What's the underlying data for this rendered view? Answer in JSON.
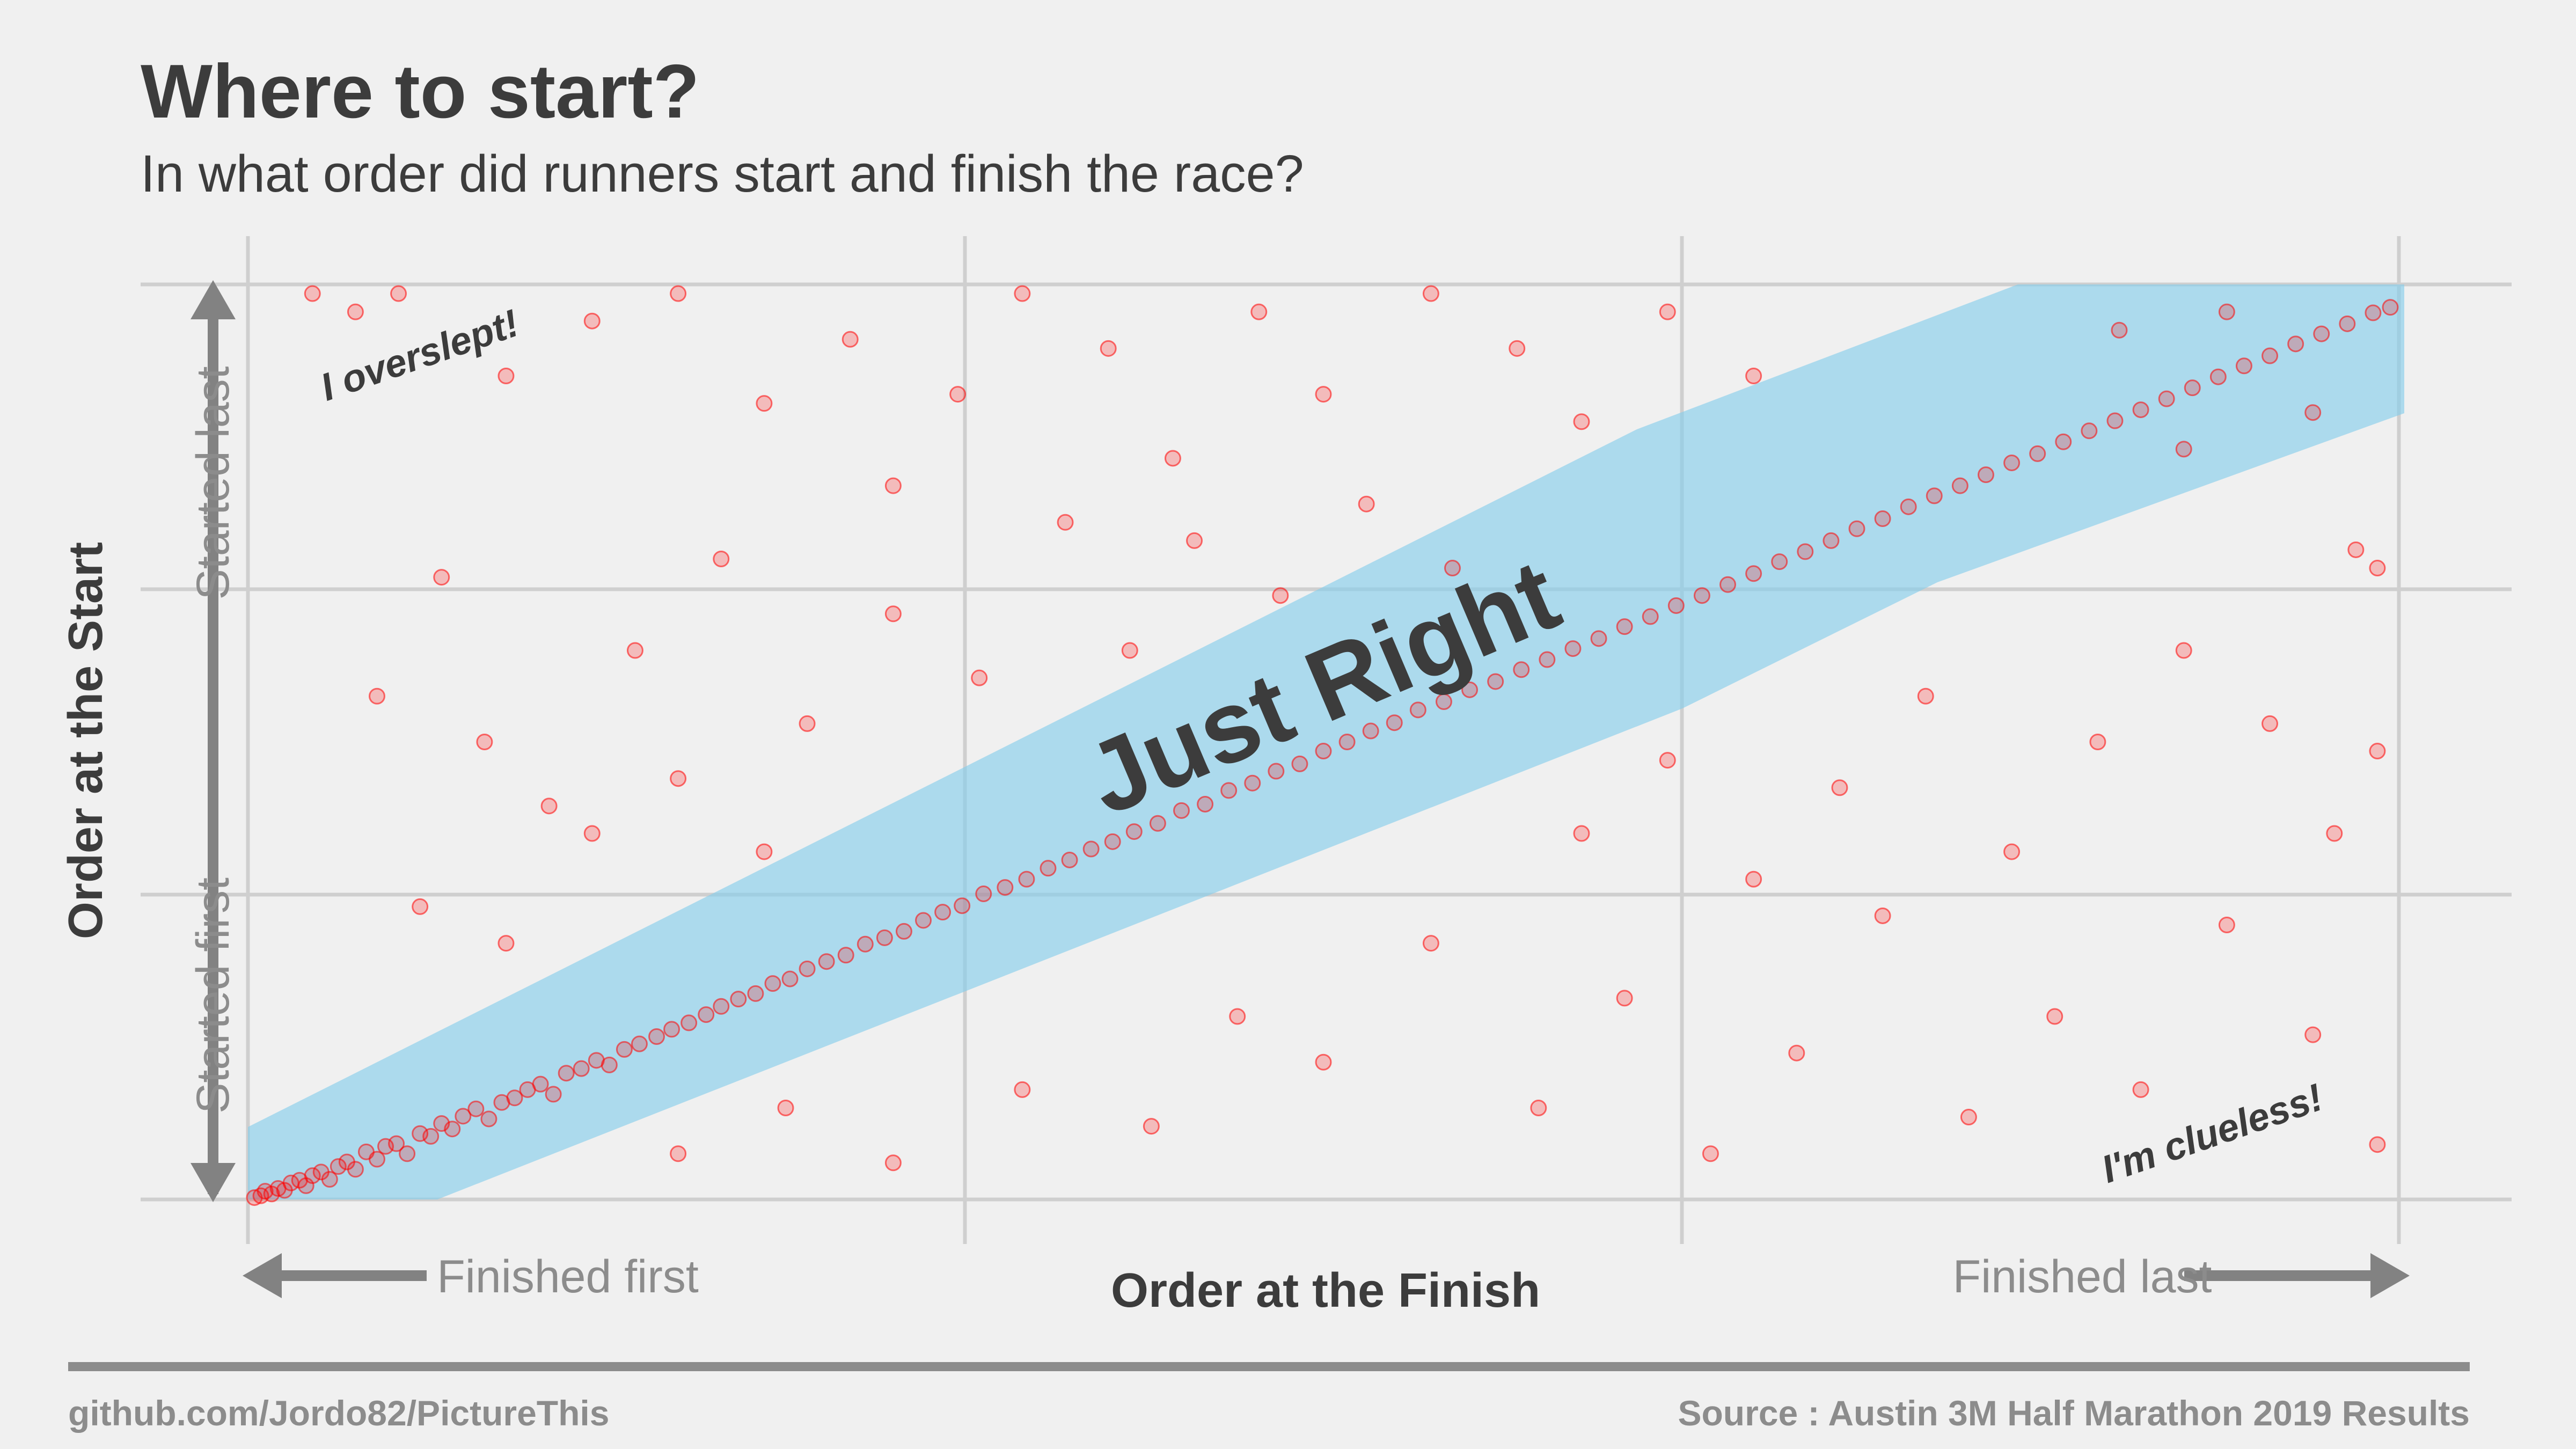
{
  "title": "Where to start?",
  "subtitle": "In what order did runners start and finish the race?",
  "footer": {
    "left": "github.com/Jordo82/PictureThis",
    "right": "Source : Austin 3M Half Marathon 2019 Results"
  },
  "chart_data": {
    "type": "scatter",
    "xlabel": "Order at the Finish",
    "ylabel": "Order at the Start",
    "x_ticks": [
      "Finished first",
      "Finished last"
    ],
    "y_ticks": [
      "Started first",
      "Started last"
    ],
    "xlim": [
      0,
      1
    ],
    "ylim": [
      0,
      1
    ],
    "grid": true,
    "point_color": "#ff0000",
    "band_color": "#87ceeb",
    "annotations": {
      "band": "Just Right",
      "top_left": "I overslept!",
      "bottom_right": "I'm clueless!"
    },
    "series": [
      {
        "values": [
          [
            0.003,
            0.002
          ],
          [
            0.006,
            0.004
          ],
          [
            0.008,
            0.009
          ],
          [
            0.011,
            0.006
          ],
          [
            0.014,
            0.012
          ],
          [
            0.017,
            0.01
          ],
          [
            0.02,
            0.018
          ],
          [
            0.024,
            0.021
          ],
          [
            0.027,
            0.015
          ],
          [
            0.03,
            0.026
          ],
          [
            0.034,
            0.03
          ],
          [
            0.038,
            0.022
          ],
          [
            0.042,
            0.036
          ],
          [
            0.046,
            0.041
          ],
          [
            0.05,
            0.033
          ],
          [
            0.055,
            0.052
          ],
          [
            0.06,
            0.044
          ],
          [
            0.064,
            0.058
          ],
          [
            0.069,
            0.061
          ],
          [
            0.074,
            0.05
          ],
          [
            0.08,
            0.072
          ],
          [
            0.085,
            0.069
          ],
          [
            0.09,
            0.083
          ],
          [
            0.095,
            0.077
          ],
          [
            0.1,
            0.091
          ],
          [
            0.106,
            0.099
          ],
          [
            0.112,
            0.088
          ],
          [
            0.118,
            0.106
          ],
          [
            0.124,
            0.111
          ],
          [
            0.13,
            0.12
          ],
          [
            0.136,
            0.126
          ],
          [
            0.142,
            0.115
          ],
          [
            0.148,
            0.138
          ],
          [
            0.155,
            0.143
          ],
          [
            0.162,
            0.152
          ],
          [
            0.168,
            0.147
          ],
          [
            0.175,
            0.164
          ],
          [
            0.182,
            0.17
          ],
          [
            0.19,
            0.178
          ],
          [
            0.197,
            0.186
          ],
          [
            0.205,
            0.193
          ],
          [
            0.213,
            0.202
          ],
          [
            0.22,
            0.211
          ],
          [
            0.228,
            0.219
          ],
          [
            0.236,
            0.225
          ],
          [
            0.244,
            0.236
          ],
          [
            0.252,
            0.241
          ],
          [
            0.26,
            0.252
          ],
          [
            0.269,
            0.26
          ],
          [
            0.278,
            0.267
          ],
          [
            0.287,
            0.279
          ],
          [
            0.296,
            0.286
          ],
          [
            0.305,
            0.293
          ],
          [
            0.314,
            0.305
          ],
          [
            0.323,
            0.314
          ],
          [
            0.332,
            0.321
          ],
          [
            0.342,
            0.334
          ],
          [
            0.352,
            0.341
          ],
          [
            0.362,
            0.35
          ],
          [
            0.372,
            0.362
          ],
          [
            0.382,
            0.371
          ],
          [
            0.392,
            0.383
          ],
          [
            0.402,
            0.391
          ],
          [
            0.412,
            0.402
          ],
          [
            0.423,
            0.411
          ],
          [
            0.434,
            0.425
          ],
          [
            0.445,
            0.432
          ],
          [
            0.456,
            0.447
          ],
          [
            0.467,
            0.455
          ],
          [
            0.478,
            0.468
          ],
          [
            0.489,
            0.476
          ],
          [
            0.5,
            0.49
          ],
          [
            0.511,
            0.5
          ],
          [
            0.522,
            0.512
          ],
          [
            0.533,
            0.521
          ],
          [
            0.544,
            0.535
          ],
          [
            0.556,
            0.544
          ],
          [
            0.568,
            0.557
          ],
          [
            0.58,
            0.566
          ],
          [
            0.592,
            0.579
          ],
          [
            0.604,
            0.59
          ],
          [
            0.616,
            0.602
          ],
          [
            0.628,
            0.613
          ],
          [
            0.64,
            0.626
          ],
          [
            0.652,
            0.637
          ],
          [
            0.664,
            0.649
          ],
          [
            0.676,
            0.66
          ],
          [
            0.688,
            0.672
          ],
          [
            0.7,
            0.684
          ],
          [
            0.712,
            0.697
          ],
          [
            0.724,
            0.708
          ],
          [
            0.736,
            0.72
          ],
          [
            0.748,
            0.733
          ],
          [
            0.76,
            0.744
          ],
          [
            0.772,
            0.757
          ],
          [
            0.784,
            0.769
          ],
          [
            0.796,
            0.78
          ],
          [
            0.808,
            0.792
          ],
          [
            0.82,
            0.805
          ],
          [
            0.832,
            0.815
          ],
          [
            0.844,
            0.828
          ],
          [
            0.856,
            0.84
          ],
          [
            0.868,
            0.851
          ],
          [
            0.88,
            0.863
          ],
          [
            0.892,
            0.875
          ],
          [
            0.904,
            0.887
          ],
          [
            0.916,
            0.899
          ],
          [
            0.928,
            0.911
          ],
          [
            0.94,
            0.922
          ],
          [
            0.952,
            0.935
          ],
          [
            0.964,
            0.946
          ],
          [
            0.976,
            0.957
          ],
          [
            0.988,
            0.969
          ],
          [
            0.996,
            0.975
          ],
          [
            0.92,
            0.97
          ],
          [
            0.87,
            0.95
          ],
          [
            0.9,
            0.82
          ],
          [
            0.96,
            0.86
          ],
          [
            0.99,
            0.69
          ],
          [
            0.98,
            0.71
          ],
          [
            0.03,
            0.99
          ],
          [
            0.05,
            0.97
          ],
          [
            0.07,
            0.99
          ],
          [
            0.12,
            0.9
          ],
          [
            0.16,
            0.96
          ],
          [
            0.2,
            0.99
          ],
          [
            0.24,
            0.87
          ],
          [
            0.28,
            0.94
          ],
          [
            0.3,
            0.78
          ],
          [
            0.33,
            0.88
          ],
          [
            0.36,
            0.99
          ],
          [
            0.4,
            0.93
          ],
          [
            0.43,
            0.81
          ],
          [
            0.47,
            0.97
          ],
          [
            0.5,
            0.88
          ],
          [
            0.55,
            0.99
          ],
          [
            0.59,
            0.93
          ],
          [
            0.62,
            0.85
          ],
          [
            0.66,
            0.97
          ],
          [
            0.7,
            0.9
          ],
          [
            0.06,
            0.55
          ],
          [
            0.09,
            0.68
          ],
          [
            0.11,
            0.5
          ],
          [
            0.14,
            0.43
          ],
          [
            0.18,
            0.6
          ],
          [
            0.22,
            0.7
          ],
          [
            0.26,
            0.52
          ],
          [
            0.3,
            0.64
          ],
          [
            0.34,
            0.57
          ],
          [
            0.38,
            0.74
          ],
          [
            0.08,
            0.32
          ],
          [
            0.12,
            0.28
          ],
          [
            0.16,
            0.4
          ],
          [
            0.2,
            0.46
          ],
          [
            0.24,
            0.38
          ],
          [
            0.41,
            0.6
          ],
          [
            0.44,
            0.72
          ],
          [
            0.48,
            0.66
          ],
          [
            0.52,
            0.76
          ],
          [
            0.56,
            0.69
          ],
          [
            0.2,
            0.05
          ],
          [
            0.25,
            0.1
          ],
          [
            0.3,
            0.04
          ],
          [
            0.36,
            0.12
          ],
          [
            0.42,
            0.08
          ],
          [
            0.46,
            0.2
          ],
          [
            0.5,
            0.15
          ],
          [
            0.55,
            0.28
          ],
          [
            0.6,
            0.1
          ],
          [
            0.64,
            0.22
          ],
          [
            0.68,
            0.05
          ],
          [
            0.72,
            0.16
          ],
          [
            0.76,
            0.31
          ],
          [
            0.8,
            0.09
          ],
          [
            0.84,
            0.2
          ],
          [
            0.88,
            0.12
          ],
          [
            0.92,
            0.3
          ],
          [
            0.96,
            0.18
          ],
          [
            0.99,
            0.06
          ],
          [
            0.97,
            0.4
          ],
          [
            0.62,
            0.4
          ],
          [
            0.66,
            0.48
          ],
          [
            0.7,
            0.35
          ],
          [
            0.74,
            0.45
          ],
          [
            0.78,
            0.55
          ],
          [
            0.82,
            0.38
          ],
          [
            0.86,
            0.5
          ],
          [
            0.9,
            0.6
          ],
          [
            0.94,
            0.52
          ],
          [
            0.99,
            0.49
          ]
        ]
      }
    ]
  }
}
